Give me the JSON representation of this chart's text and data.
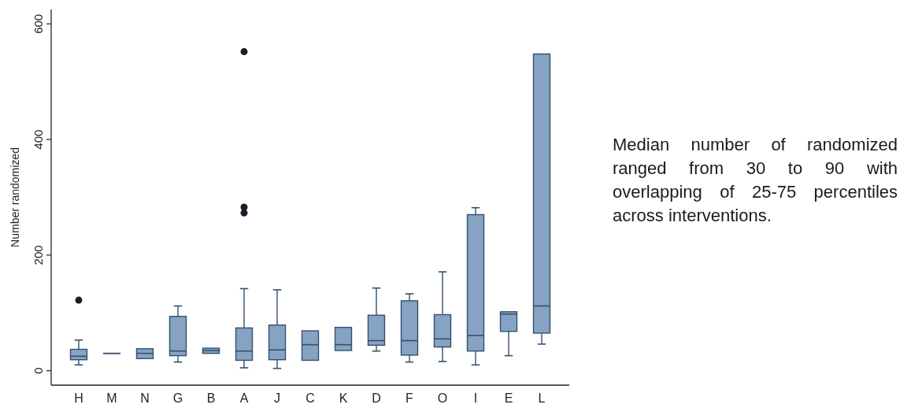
{
  "chart_data": {
    "type": "box",
    "ylabel": "Number randomized",
    "categories": [
      "H",
      "M",
      "N",
      "G",
      "B",
      "A",
      "J",
      "C",
      "K",
      "D",
      "F",
      "O",
      "I",
      "E",
      "L"
    ],
    "ylim": [
      -25,
      625
    ],
    "yticks": [
      0,
      200,
      400,
      600
    ],
    "series": [
      {
        "color": "#86a3c3",
        "boxes": [
          {
            "low": 10,
            "q1": 19,
            "median": 25,
            "q3": 37,
            "high": 53,
            "outliers": [
              122
            ]
          },
          {
            "low": 30,
            "q1": 30,
            "median": 30,
            "q3": 30,
            "high": 30
          },
          {
            "low": 21,
            "q1": 21,
            "median": 30,
            "q3": 38,
            "high": 38
          },
          {
            "low": 15,
            "q1": 26,
            "median": 34,
            "q3": 94,
            "high": 112
          },
          {
            "low": 30,
            "q1": 30,
            "median": 35,
            "q3": 39,
            "high": 39
          },
          {
            "low": 5,
            "q1": 18,
            "median": 34,
            "q3": 74,
            "high": 142,
            "outliers": [
              552,
              283,
              273
            ]
          },
          {
            "low": 4,
            "q1": 19,
            "median": 36,
            "q3": 79,
            "high": 140
          },
          {
            "low": 18,
            "q1": 18,
            "median": 45,
            "q3": 69,
            "high": 69
          },
          {
            "low": 35,
            "q1": 35,
            "median": 45,
            "q3": 75,
            "high": 75
          },
          {
            "low": 34,
            "q1": 44,
            "median": 52,
            "q3": 96,
            "high": 143
          },
          {
            "low": 15,
            "q1": 27,
            "median": 52,
            "q3": 121,
            "high": 133
          },
          {
            "low": 16,
            "q1": 41,
            "median": 55,
            "q3": 97,
            "high": 171
          },
          {
            "low": 10,
            "q1": 34,
            "median": 61,
            "q3": 270,
            "high": 282
          },
          {
            "low": 26,
            "q1": 68,
            "median": 98,
            "q3": 102,
            "high": 102
          },
          {
            "low": 46,
            "q1": 65,
            "median": 112,
            "q3": 548,
            "high": 548
          }
        ]
      }
    ],
    "annotations": [
      "Median number of randomized ranged from 30 to 90 with overlapping of 25-75 percentiles across interventions."
    ]
  }
}
